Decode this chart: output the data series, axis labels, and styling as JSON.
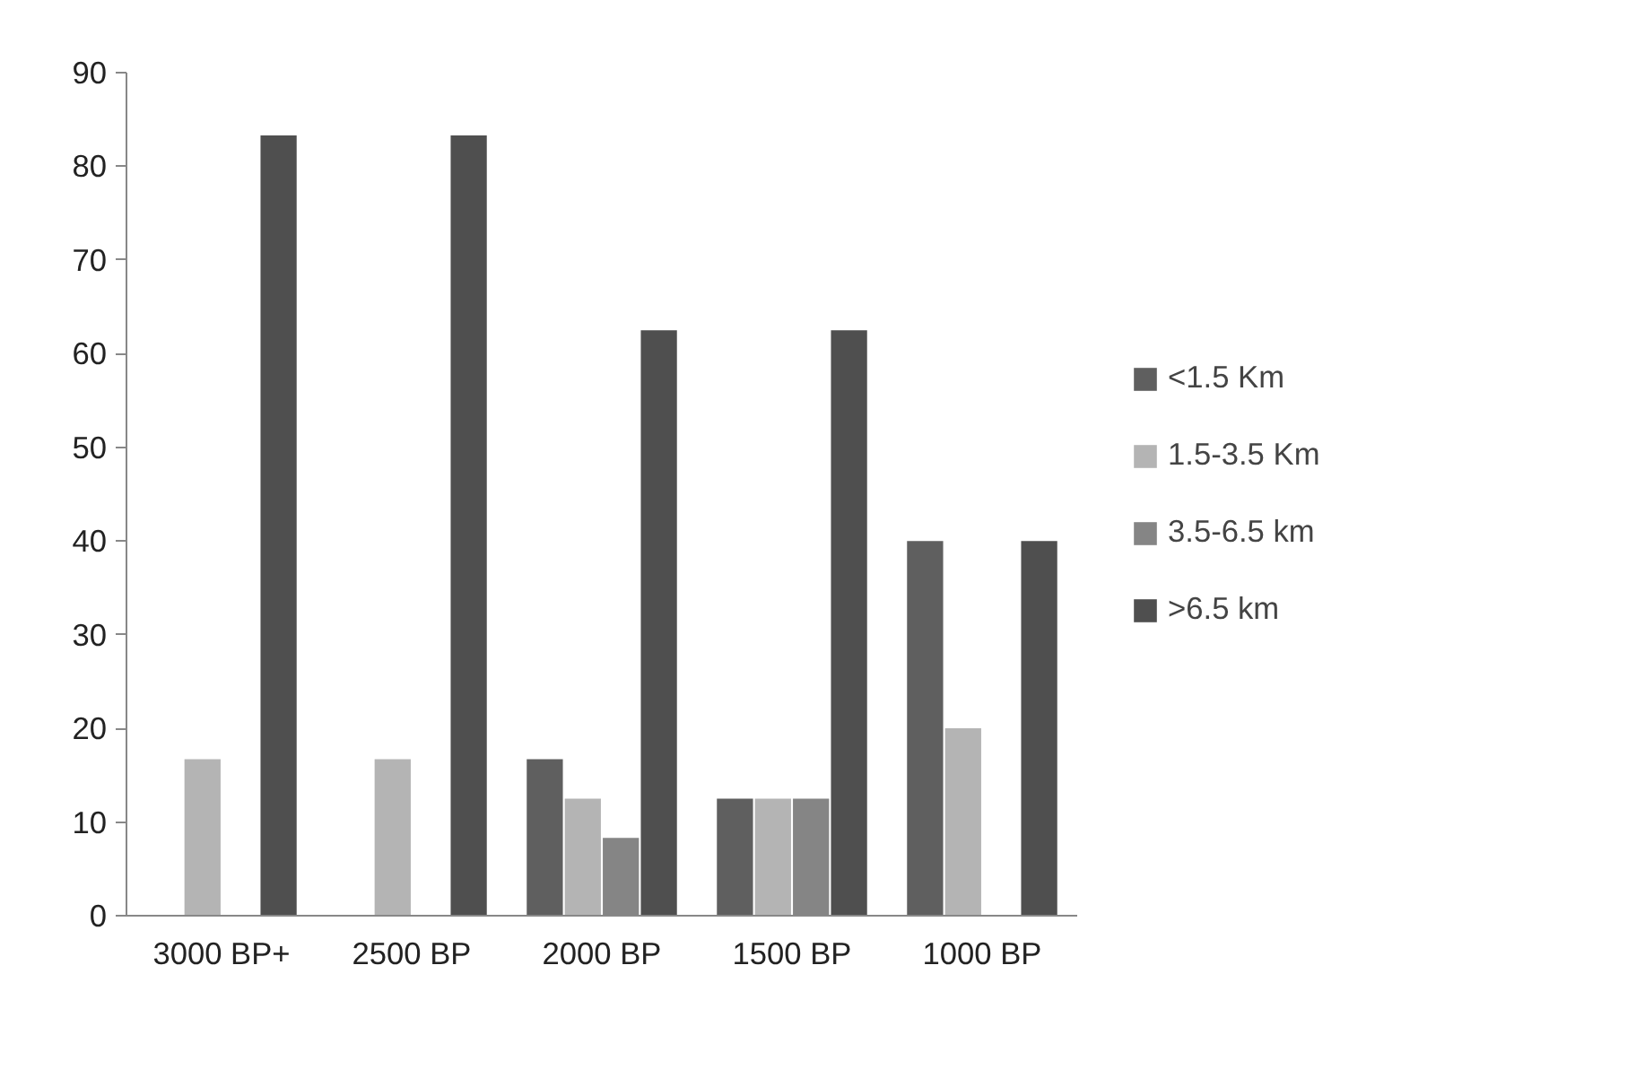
{
  "chart_data": {
    "type": "bar",
    "categories": [
      "3000 BP+",
      "2500 BP",
      "2000 BP",
      "1500 BP",
      "1000 BP"
    ],
    "series": [
      {
        "name": "<1.5 Km",
        "color": "#5f5f5f",
        "values": [
          0,
          0,
          16.7,
          12.5,
          40
        ]
      },
      {
        "name": "1.5-3.5 Km",
        "color": "#b4b4b4",
        "values": [
          16.7,
          16.7,
          12.5,
          12.5,
          20
        ]
      },
      {
        "name": "3.5-6.5 km",
        "color": "#858585",
        "values": [
          0,
          0,
          8.3,
          12.5,
          0
        ]
      },
      {
        "name": ">6.5 km",
        "color": "#4f4f4f",
        "values": [
          83.3,
          83.3,
          62.5,
          62.5,
          40
        ]
      }
    ],
    "ylim": [
      0,
      90
    ],
    "yticks": [
      0,
      10,
      20,
      30,
      40,
      50,
      60,
      70,
      80,
      90
    ],
    "grid": false,
    "legend": "right"
  }
}
